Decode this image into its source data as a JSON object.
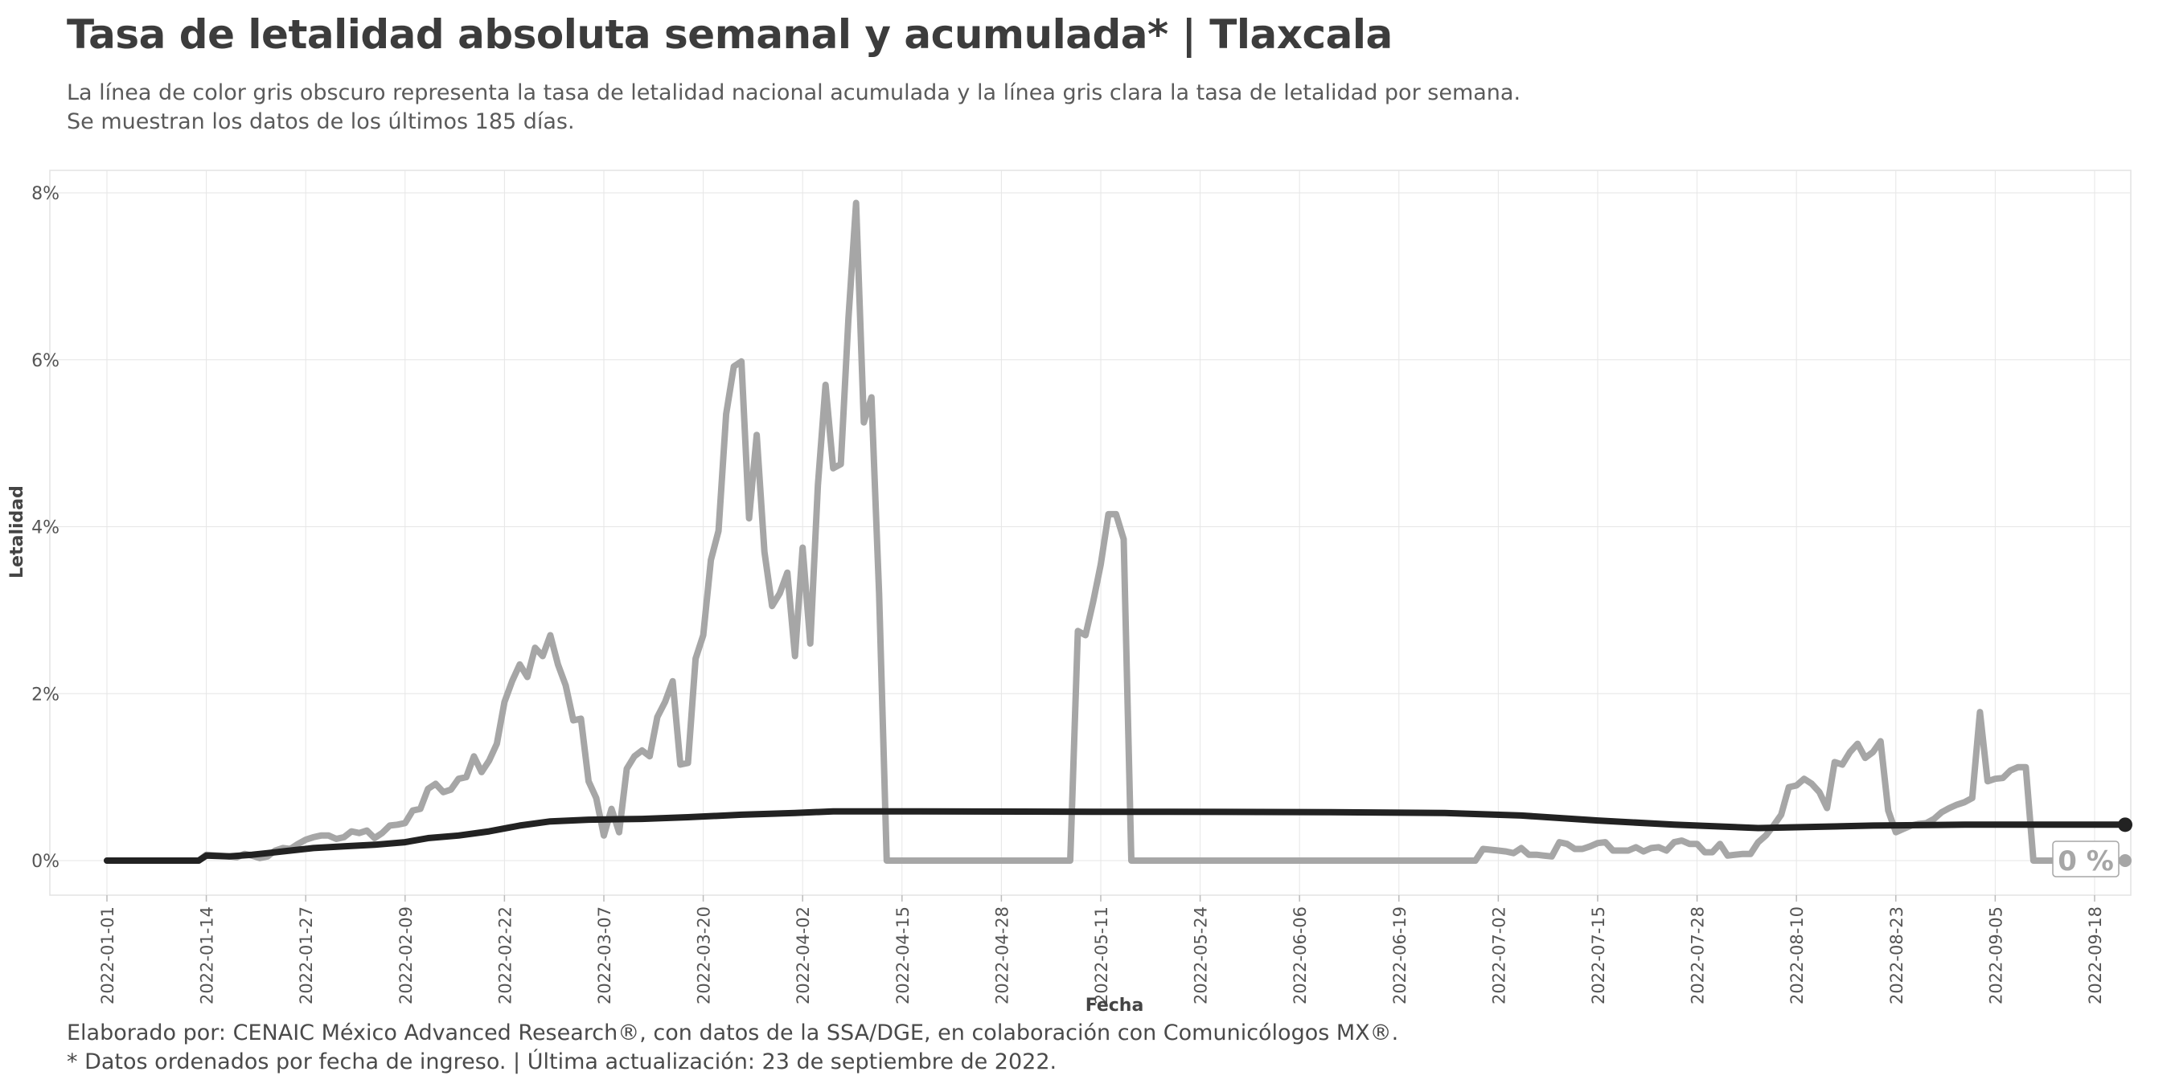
{
  "header": {
    "title": "Tasa de letalidad absoluta semanal y acumulada* | Tlaxcala",
    "subtitle_line1": "La línea de color gris obscuro representa la tasa de letalidad nacional acumulada y la línea gris clara la tasa de letalidad por semana.",
    "subtitle_line2": "Se muestran los datos de los últimos 185 días."
  },
  "footer": {
    "caption_line1": "Elaborado por: CENAIC México Advanced Research®, con datos de la SSA/DGE, en colaboración con Comunicólogos MX®.",
    "caption_line2": "* Datos ordenados por fecha de ingreso. | Última actualización: 23 de septiembre de 2022."
  },
  "colors": {
    "weekly_line": "#a6a6a6",
    "cumulative_line": "#222222",
    "grid": "#e6e6e6",
    "panel_border": "#e3e3e3",
    "axis_text": "#555555"
  },
  "chart_data": {
    "type": "line",
    "xlabel": "Fecha",
    "ylabel": "Letalidad",
    "xlim": [
      "2022-01-01",
      "2022-09-22"
    ],
    "ylim": [
      0,
      8
    ],
    "y_ticks": [
      0,
      2,
      4,
      6,
      8
    ],
    "y_tick_labels": [
      "0%",
      "2%",
      "4%",
      "6%",
      "8%"
    ],
    "x_ticks": [
      "2022-01-01",
      "2022-01-14",
      "2022-01-27",
      "2022-02-09",
      "2022-02-22",
      "2022-03-07",
      "2022-03-20",
      "2022-04-02",
      "2022-04-15",
      "2022-04-28",
      "2022-05-11",
      "2022-05-24",
      "2022-06-06",
      "2022-06-19",
      "2022-07-02",
      "2022-07-15",
      "2022-07-28",
      "2022-08-10",
      "2022-08-23",
      "2022-09-05",
      "2022-09-18"
    ],
    "end_label": "0 %",
    "grid": true,
    "series": [
      {
        "key": "weekly",
        "points": [
          [
            "2022-01-01",
            0
          ],
          [
            "2022-01-13",
            0
          ],
          [
            "2022-01-14",
            0.07
          ],
          [
            "2022-01-17",
            0.05
          ],
          [
            "2022-01-18",
            0.04
          ],
          [
            "2022-01-19",
            0.08
          ],
          [
            "2022-01-20",
            0.06
          ],
          [
            "2022-01-21",
            0.03
          ],
          [
            "2022-01-22",
            0.05
          ],
          [
            "2022-01-23",
            0.12
          ],
          [
            "2022-01-24",
            0.15
          ],
          [
            "2022-01-25",
            0.14
          ],
          [
            "2022-01-26",
            0.2
          ],
          [
            "2022-01-27",
            0.25
          ],
          [
            "2022-01-28",
            0.28
          ],
          [
            "2022-01-29",
            0.3
          ],
          [
            "2022-01-30",
            0.3
          ],
          [
            "2022-01-31",
            0.26
          ],
          [
            "2022-02-01",
            0.28
          ],
          [
            "2022-02-02",
            0.35
          ],
          [
            "2022-02-03",
            0.33
          ],
          [
            "2022-02-04",
            0.36
          ],
          [
            "2022-02-05",
            0.27
          ],
          [
            "2022-02-06",
            0.33
          ],
          [
            "2022-02-07",
            0.42
          ],
          [
            "2022-02-08",
            0.43
          ],
          [
            "2022-02-09",
            0.45
          ],
          [
            "2022-02-10",
            0.6
          ],
          [
            "2022-02-11",
            0.62
          ],
          [
            "2022-02-12",
            0.86
          ],
          [
            "2022-02-13",
            0.92
          ],
          [
            "2022-02-14",
            0.82
          ],
          [
            "2022-02-15",
            0.85
          ],
          [
            "2022-02-16",
            0.98
          ],
          [
            "2022-02-17",
            1.0
          ],
          [
            "2022-02-18",
            1.25
          ],
          [
            "2022-02-19",
            1.06
          ],
          [
            "2022-02-20",
            1.2
          ],
          [
            "2022-02-21",
            1.4
          ],
          [
            "2022-02-22",
            1.9
          ],
          [
            "2022-02-23",
            2.15
          ],
          [
            "2022-02-24",
            2.35
          ],
          [
            "2022-02-25",
            2.2
          ],
          [
            "2022-02-26",
            2.55
          ],
          [
            "2022-02-27",
            2.45
          ],
          [
            "2022-02-28",
            2.7
          ],
          [
            "2022-03-01",
            2.35
          ],
          [
            "2022-03-02",
            2.1
          ],
          [
            "2022-03-03",
            1.68
          ],
          [
            "2022-03-04",
            1.7
          ],
          [
            "2022-03-05",
            0.95
          ],
          [
            "2022-03-06",
            0.75
          ],
          [
            "2022-03-07",
            0.3
          ],
          [
            "2022-03-08",
            0.62
          ],
          [
            "2022-03-09",
            0.34
          ],
          [
            "2022-03-10",
            1.1
          ],
          [
            "2022-03-11",
            1.25
          ],
          [
            "2022-03-12",
            1.32
          ],
          [
            "2022-03-13",
            1.25
          ],
          [
            "2022-03-14",
            1.72
          ],
          [
            "2022-03-15",
            1.9
          ],
          [
            "2022-03-16",
            2.15
          ],
          [
            "2022-03-17",
            1.15
          ],
          [
            "2022-03-18",
            1.17
          ],
          [
            "2022-03-19",
            2.42
          ],
          [
            "2022-03-20",
            2.7
          ],
          [
            "2022-03-21",
            3.6
          ],
          [
            "2022-03-22",
            3.95
          ],
          [
            "2022-03-23",
            5.35
          ],
          [
            "2022-03-24",
            5.92
          ],
          [
            "2022-03-25",
            5.98
          ],
          [
            "2022-03-26",
            4.1
          ],
          [
            "2022-03-27",
            5.1
          ],
          [
            "2022-03-28",
            3.7
          ],
          [
            "2022-03-29",
            3.05
          ],
          [
            "2022-03-30",
            3.2
          ],
          [
            "2022-03-31",
            3.45
          ],
          [
            "2022-04-01",
            2.45
          ],
          [
            "2022-04-02",
            3.75
          ],
          [
            "2022-04-03",
            2.6
          ],
          [
            "2022-04-04",
            4.5
          ],
          [
            "2022-04-05",
            5.7
          ],
          [
            "2022-04-06",
            4.7
          ],
          [
            "2022-04-07",
            4.75
          ],
          [
            "2022-04-08",
            6.5
          ],
          [
            "2022-04-09",
            7.88
          ],
          [
            "2022-04-10",
            5.25
          ],
          [
            "2022-04-11",
            5.55
          ],
          [
            "2022-04-12",
            3.2
          ],
          [
            "2022-04-13",
            0
          ],
          [
            "2022-05-07",
            0
          ],
          [
            "2022-05-08",
            2.75
          ],
          [
            "2022-05-09",
            2.7
          ],
          [
            "2022-05-10",
            3.1
          ],
          [
            "2022-05-11",
            3.55
          ],
          [
            "2022-05-12",
            4.15
          ],
          [
            "2022-05-13",
            4.15
          ],
          [
            "2022-05-14",
            3.85
          ],
          [
            "2022-05-15",
            0
          ],
          [
            "2022-06-29",
            0
          ],
          [
            "2022-06-30",
            0.14
          ],
          [
            "2022-07-01",
            0.13
          ],
          [
            "2022-07-02",
            0.12
          ],
          [
            "2022-07-03",
            0.11
          ],
          [
            "2022-07-04",
            0.09
          ],
          [
            "2022-07-05",
            0.15
          ],
          [
            "2022-07-06",
            0.07
          ],
          [
            "2022-07-07",
            0.07
          ],
          [
            "2022-07-08",
            0.06
          ],
          [
            "2022-07-09",
            0.05
          ],
          [
            "2022-07-10",
            0.22
          ],
          [
            "2022-07-11",
            0.2
          ],
          [
            "2022-07-12",
            0.14
          ],
          [
            "2022-07-13",
            0.14
          ],
          [
            "2022-07-14",
            0.17
          ],
          [
            "2022-07-15",
            0.21
          ],
          [
            "2022-07-16",
            0.22
          ],
          [
            "2022-07-17",
            0.12
          ],
          [
            "2022-07-18",
            0.12
          ],
          [
            "2022-07-19",
            0.12
          ],
          [
            "2022-07-20",
            0.16
          ],
          [
            "2022-07-21",
            0.11
          ],
          [
            "2022-07-22",
            0.15
          ],
          [
            "2022-07-23",
            0.16
          ],
          [
            "2022-07-24",
            0.12
          ],
          [
            "2022-07-25",
            0.22
          ],
          [
            "2022-07-26",
            0.24
          ],
          [
            "2022-07-27",
            0.2
          ],
          [
            "2022-07-28",
            0.2
          ],
          [
            "2022-07-29",
            0.1
          ],
          [
            "2022-07-30",
            0.1
          ],
          [
            "2022-07-31",
            0.2
          ],
          [
            "2022-08-01",
            0.06
          ],
          [
            "2022-08-02",
            0.07
          ],
          [
            "2022-08-03",
            0.08
          ],
          [
            "2022-08-04",
            0.08
          ],
          [
            "2022-08-05",
            0.22
          ],
          [
            "2022-08-06",
            0.3
          ],
          [
            "2022-08-07",
            0.42
          ],
          [
            "2022-08-08",
            0.55
          ],
          [
            "2022-08-09",
            0.88
          ],
          [
            "2022-08-10",
            0.9
          ],
          [
            "2022-08-11",
            0.98
          ],
          [
            "2022-08-12",
            0.92
          ],
          [
            "2022-08-13",
            0.82
          ],
          [
            "2022-08-14",
            0.63
          ],
          [
            "2022-08-15",
            1.18
          ],
          [
            "2022-08-16",
            1.15
          ],
          [
            "2022-08-17",
            1.3
          ],
          [
            "2022-08-18",
            1.4
          ],
          [
            "2022-08-19",
            1.23
          ],
          [
            "2022-08-20",
            1.3
          ],
          [
            "2022-08-21",
            1.43
          ],
          [
            "2022-08-22",
            0.6
          ],
          [
            "2022-08-23",
            0.34
          ],
          [
            "2022-08-24",
            0.38
          ],
          [
            "2022-08-25",
            0.42
          ],
          [
            "2022-08-26",
            0.44
          ],
          [
            "2022-08-27",
            0.45
          ],
          [
            "2022-08-28",
            0.5
          ],
          [
            "2022-08-29",
            0.58
          ],
          [
            "2022-08-30",
            0.63
          ],
          [
            "2022-08-31",
            0.67
          ],
          [
            "2022-09-01",
            0.7
          ],
          [
            "2022-09-02",
            0.75
          ],
          [
            "2022-09-03",
            1.78
          ],
          [
            "2022-09-04",
            0.95
          ],
          [
            "2022-09-05",
            0.98
          ],
          [
            "2022-09-06",
            0.99
          ],
          [
            "2022-09-07",
            1.08
          ],
          [
            "2022-09-08",
            1.12
          ],
          [
            "2022-09-09",
            1.12
          ],
          [
            "2022-09-10",
            0
          ],
          [
            "2022-09-22",
            0
          ]
        ]
      },
      {
        "key": "cumulative",
        "points": [
          [
            "2022-01-01",
            0
          ],
          [
            "2022-01-13",
            0
          ],
          [
            "2022-01-14",
            0.06
          ],
          [
            "2022-01-17",
            0.05
          ],
          [
            "2022-01-20",
            0.07
          ],
          [
            "2022-01-22",
            0.09
          ],
          [
            "2022-01-25",
            0.12
          ],
          [
            "2022-01-28",
            0.15
          ],
          [
            "2022-02-01",
            0.17
          ],
          [
            "2022-02-05",
            0.19
          ],
          [
            "2022-02-09",
            0.22
          ],
          [
            "2022-02-12",
            0.27
          ],
          [
            "2022-02-16",
            0.3
          ],
          [
            "2022-02-20",
            0.35
          ],
          [
            "2022-02-24",
            0.42
          ],
          [
            "2022-02-28",
            0.47
          ],
          [
            "2022-03-05",
            0.49
          ],
          [
            "2022-03-12",
            0.5
          ],
          [
            "2022-03-18",
            0.52
          ],
          [
            "2022-03-25",
            0.55
          ],
          [
            "2022-04-01",
            0.57
          ],
          [
            "2022-04-06",
            0.59
          ],
          [
            "2022-04-15",
            0.59
          ],
          [
            "2022-05-10",
            0.585
          ],
          [
            "2022-05-20",
            0.585
          ],
          [
            "2022-06-10",
            0.58
          ],
          [
            "2022-06-25",
            0.57
          ],
          [
            "2022-07-05",
            0.54
          ],
          [
            "2022-07-15",
            0.48
          ],
          [
            "2022-07-25",
            0.43
          ],
          [
            "2022-08-05",
            0.39
          ],
          [
            "2022-08-10",
            0.4
          ],
          [
            "2022-08-20",
            0.42
          ],
          [
            "2022-09-01",
            0.43
          ],
          [
            "2022-09-22",
            0.43
          ]
        ]
      }
    ]
  }
}
